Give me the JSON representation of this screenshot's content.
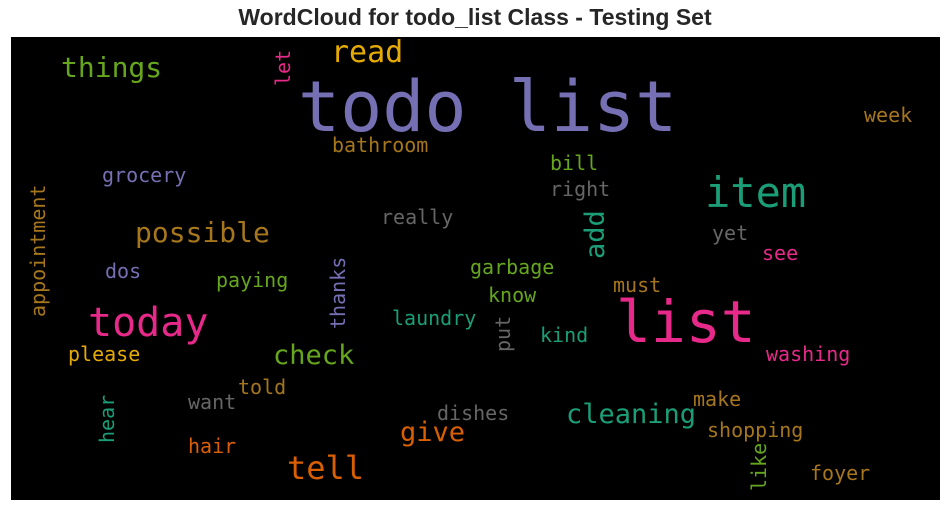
{
  "title": "WordCloud for todo_list Class - Testing Set",
  "chart_data": {
    "type": "wordcloud",
    "title": "WordCloud for todo_list Class - Testing Set",
    "background": "#000000",
    "words": [
      {
        "text": "todo list",
        "color": "#7570b3",
        "weight": 1.0
      },
      {
        "text": "list",
        "color": "#e7298a",
        "weight": 0.83
      },
      {
        "text": "item",
        "color": "#1b9e77",
        "weight": 0.6
      },
      {
        "text": "today",
        "color": "#e7298a",
        "weight": 0.57
      },
      {
        "text": "tell",
        "color": "#d95f02",
        "weight": 0.46
      },
      {
        "text": "read",
        "color": "#e6ab02",
        "weight": 0.43
      },
      {
        "text": "things",
        "color": "#66a61e",
        "weight": 0.4
      },
      {
        "text": "possible",
        "color": "#a6761d",
        "weight": 0.4
      },
      {
        "text": "check",
        "color": "#66a61e",
        "weight": 0.39
      },
      {
        "text": "cleaning",
        "color": "#1b9e77",
        "weight": 0.39
      },
      {
        "text": "give",
        "color": "#d95f02",
        "weight": 0.39
      },
      {
        "text": "add",
        "color": "#1b9e77",
        "weight": 0.39,
        "orientation": "vertical"
      },
      {
        "text": "bathroom",
        "color": "#a6761d",
        "weight": 0.29
      },
      {
        "text": "week",
        "color": "#a6761d",
        "weight": 0.29
      },
      {
        "text": "grocery",
        "color": "#7570b3",
        "weight": 0.29
      },
      {
        "text": "bill",
        "color": "#66a61e",
        "weight": 0.29
      },
      {
        "text": "right",
        "color": "#666666",
        "weight": 0.29
      },
      {
        "text": "really",
        "color": "#666666",
        "weight": 0.29
      },
      {
        "text": "yet",
        "color": "#666666",
        "weight": 0.29
      },
      {
        "text": "see",
        "color": "#e7298a",
        "weight": 0.29
      },
      {
        "text": "garbage",
        "color": "#66a61e",
        "weight": 0.29
      },
      {
        "text": "dos",
        "color": "#7570b3",
        "weight": 0.29
      },
      {
        "text": "paying",
        "color": "#66a61e",
        "weight": 0.29
      },
      {
        "text": "must",
        "color": "#a6761d",
        "weight": 0.29
      },
      {
        "text": "know",
        "color": "#66a61e",
        "weight": 0.29
      },
      {
        "text": "laundry",
        "color": "#1b9e77",
        "weight": 0.29
      },
      {
        "text": "kind",
        "color": "#1b9e77",
        "weight": 0.29
      },
      {
        "text": "please",
        "color": "#e6ab02",
        "weight": 0.29
      },
      {
        "text": "washing",
        "color": "#e7298a",
        "weight": 0.29
      },
      {
        "text": "told",
        "color": "#a6761d",
        "weight": 0.29
      },
      {
        "text": "want",
        "color": "#666666",
        "weight": 0.29
      },
      {
        "text": "make",
        "color": "#a6761d",
        "weight": 0.29
      },
      {
        "text": "dishes",
        "color": "#666666",
        "weight": 0.29
      },
      {
        "text": "shopping",
        "color": "#a6761d",
        "weight": 0.29
      },
      {
        "text": "hair",
        "color": "#d95f02",
        "weight": 0.29
      },
      {
        "text": "foyer",
        "color": "#a6761d",
        "weight": 0.29
      },
      {
        "text": "let",
        "color": "#e7298a",
        "weight": 0.29,
        "orientation": "vertical"
      },
      {
        "text": "appointment",
        "color": "#a6761d",
        "weight": 0.29,
        "orientation": "vertical"
      },
      {
        "text": "thanks",
        "color": "#7570b3",
        "weight": 0.29,
        "orientation": "vertical"
      },
      {
        "text": "put",
        "color": "#666666",
        "weight": 0.29,
        "orientation": "vertical"
      },
      {
        "text": "hear",
        "color": "#1b9e77",
        "weight": 0.29,
        "orientation": "vertical"
      },
      {
        "text": "like",
        "color": "#66a61e",
        "weight": 0.29,
        "orientation": "vertical"
      }
    ]
  }
}
